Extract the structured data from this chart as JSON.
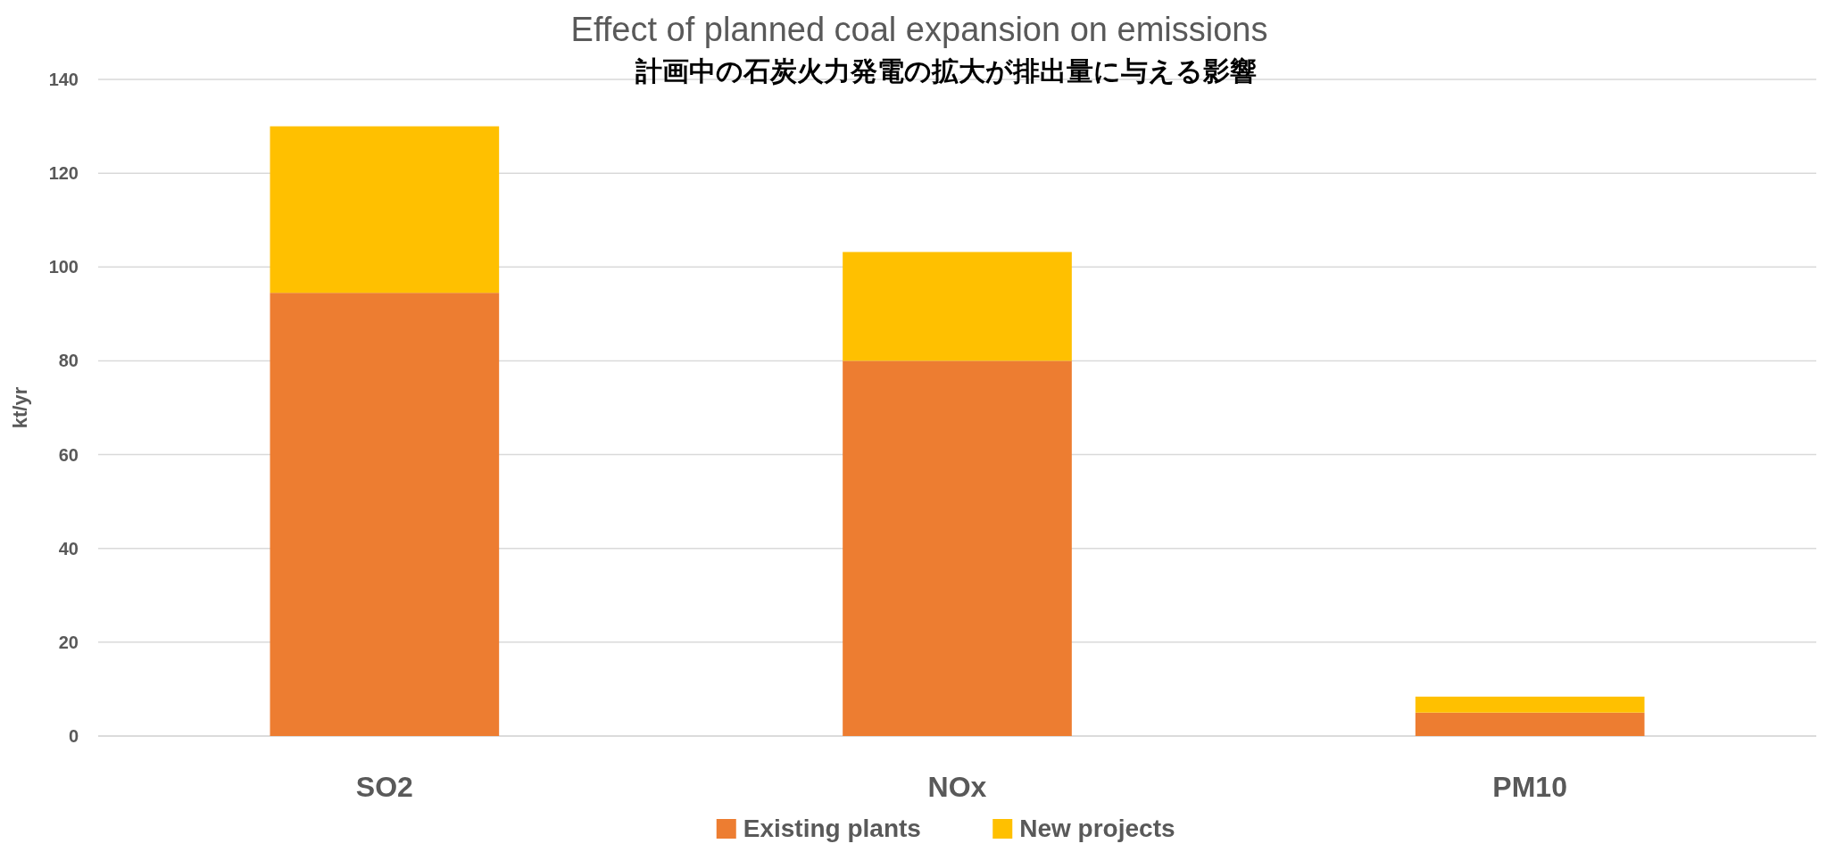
{
  "chart_data": {
    "type": "bar",
    "title": "Effect of planned coal expansion on emissions",
    "subtitle": "計画中の石炭火力発電の拡大が排出量に与える影響",
    "ylabel": "kt/yr",
    "categories": [
      "SO2",
      "NOx",
      "PM10"
    ],
    "stacked": true,
    "series": [
      {
        "name": "Existing plants",
        "color": "#ed7d31",
        "values": [
          94.5,
          80,
          5
        ]
      },
      {
        "name": "New projects",
        "color": "#ffc000",
        "values": [
          35.5,
          23.2,
          3.4
        ]
      }
    ],
    "ylim": [
      0,
      140
    ],
    "yticks": [
      0,
      20,
      40,
      60,
      80,
      100,
      120,
      140
    ],
    "grid": "y",
    "legend": "bottom"
  }
}
